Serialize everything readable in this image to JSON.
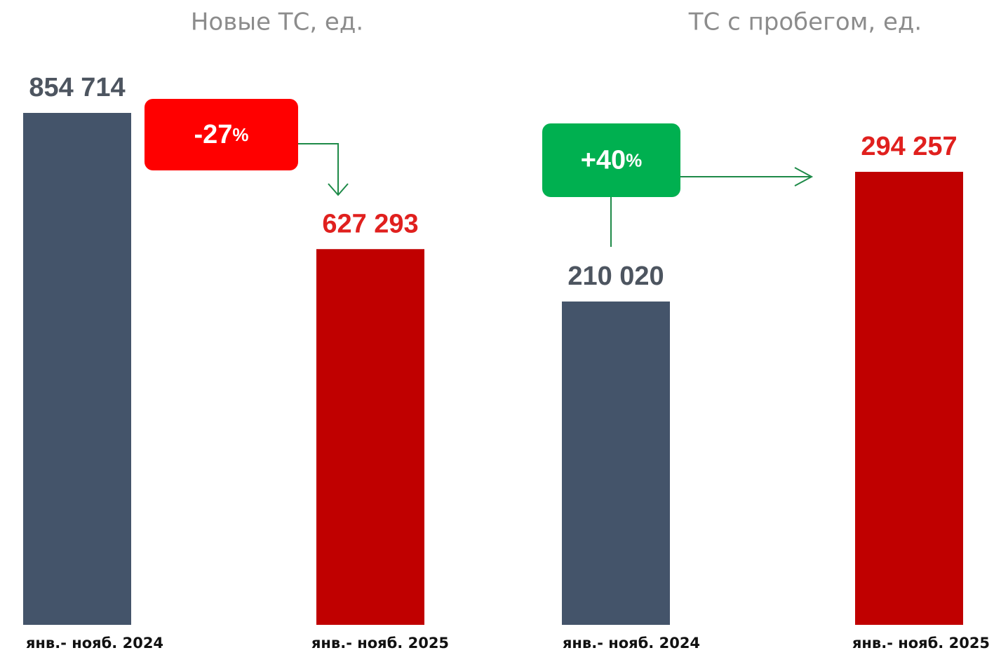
{
  "chart_data": [
    {
      "type": "bar",
      "title": "Новые ТС, ед.",
      "categories": [
        "янв.- нояб. 2024",
        "янв.- нояб. 2025"
      ],
      "values": [
        854714,
        627293
      ],
      "value_labels": [
        "854 714",
        "627 293"
      ],
      "colors": [
        "#44546a",
        "#c00000"
      ],
      "change": {
        "value": "-27",
        "unit": "%",
        "color": "#ff0000"
      }
    },
    {
      "type": "bar",
      "title": "ТС с пробегом, ед.",
      "categories": [
        "янв.- нояб. 2024",
        "янв.- нояб. 2025"
      ],
      "values": [
        210020,
        294257
      ],
      "value_labels": [
        "210 020",
        "294 257"
      ],
      "colors": [
        "#44546a",
        "#c00000"
      ],
      "change": {
        "value": "+40",
        "unit": "%",
        "color": "#00b050"
      }
    }
  ]
}
